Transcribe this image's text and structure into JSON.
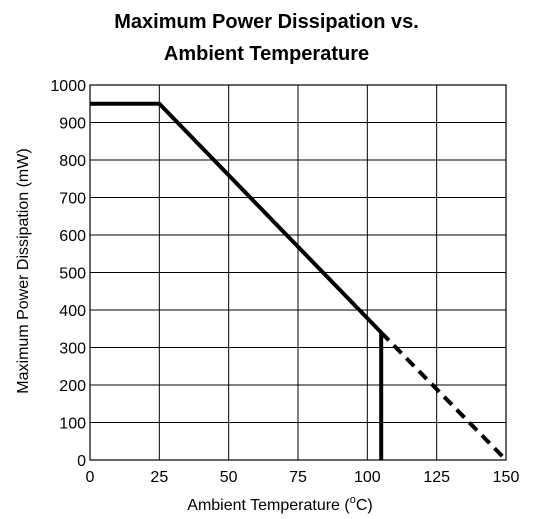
{
  "chart_data": {
    "type": "line",
    "title_line1": "Maximum Power Dissipation vs.",
    "title_line2": "Ambient Temperature",
    "xlabel": "Ambient Temperature (",
    "xlabel_sup": "o",
    "xlabel_end": "C)",
    "ylabel": "Maximum Power Dissipation (mW)",
    "xlim": [
      0,
      150
    ],
    "ylim": [
      0,
      1000
    ],
    "x_ticks": [
      0,
      25,
      50,
      75,
      100,
      125,
      150
    ],
    "y_ticks": [
      0,
      100,
      200,
      300,
      400,
      500,
      600,
      700,
      800,
      900,
      1000
    ],
    "grid": true,
    "series": [
      {
        "style": "solid",
        "x": [
          0,
          25,
          105
        ],
        "y": [
          950,
          950,
          340
        ]
      },
      {
        "style": "solid",
        "x": [
          105,
          105
        ],
        "y": [
          340,
          0
        ]
      },
      {
        "style": "dashed",
        "x": [
          105,
          150
        ],
        "y": [
          340,
          0
        ]
      }
    ],
    "colors": {
      "line": "#000000",
      "grid": "#000000"
    }
  }
}
